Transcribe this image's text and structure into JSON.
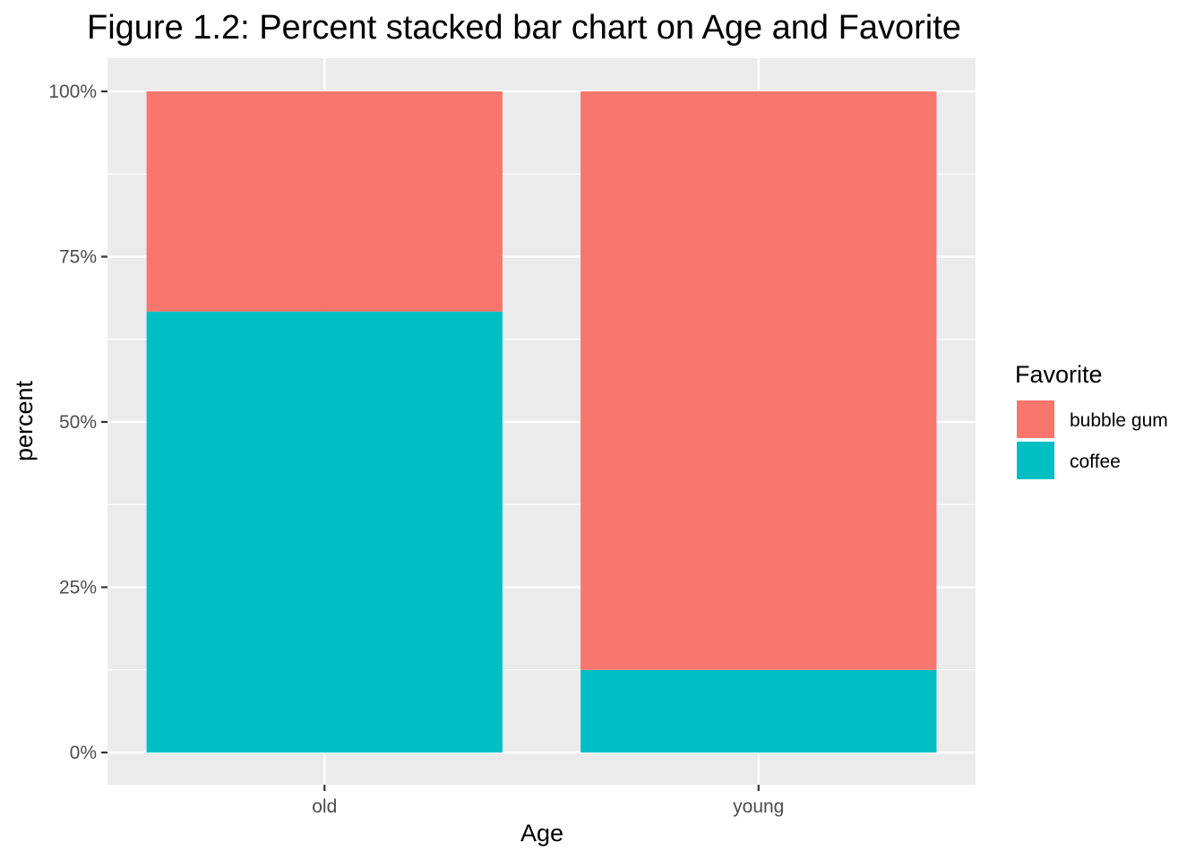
{
  "chart_data": {
    "type": "bar",
    "stacked": "percent",
    "title": "Figure 1.2: Percent stacked bar chart on Age and Favorite",
    "xlabel": "Age",
    "ylabel": "percent",
    "categories": [
      "old",
      "young"
    ],
    "ylim": [
      0,
      1
    ],
    "yticks": [
      0,
      0.25,
      0.5,
      0.75,
      1
    ],
    "ytick_labels": [
      "0%",
      "25%",
      "50%",
      "75%",
      "100%"
    ],
    "grid": true,
    "legend": {
      "title": "Favorite",
      "placement": "right"
    },
    "series": [
      {
        "name": "bubble gum",
        "color": "#F8766D",
        "values": [
          0.333,
          0.875
        ]
      },
      {
        "name": "coffee",
        "color": "#00BFC4",
        "values": [
          0.667,
          0.125
        ]
      }
    ],
    "stack_order": [
      "coffee",
      "bubble gum"
    ],
    "panel_background": "#EBEBEB",
    "grid_color": "#FFFFFF"
  }
}
